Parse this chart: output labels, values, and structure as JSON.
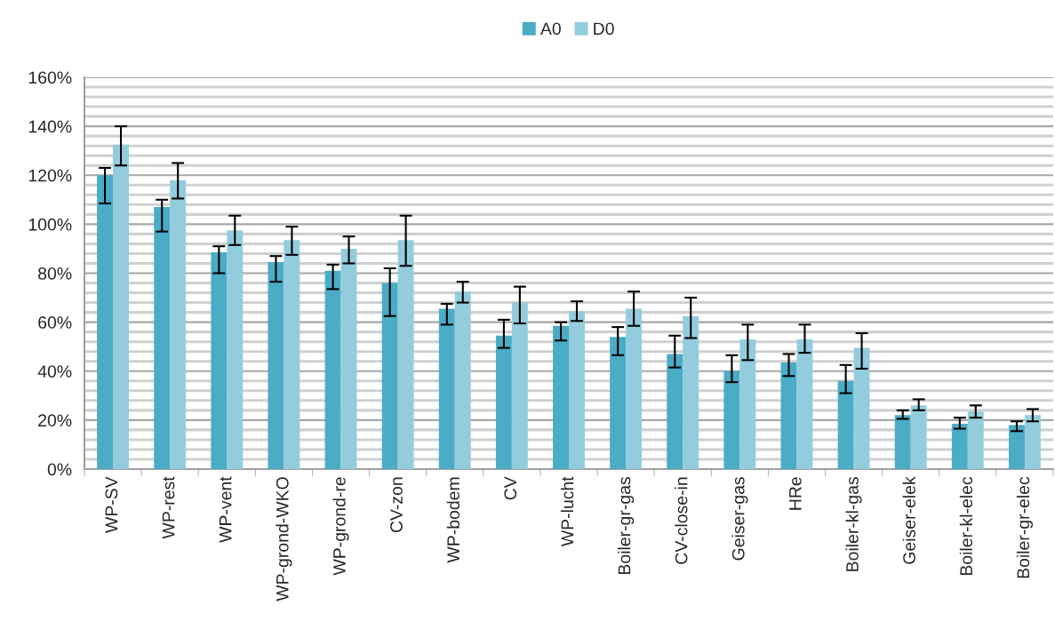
{
  "chart_data": {
    "type": "bar",
    "categories": [
      "WP-SV",
      "WP-rest",
      "WP-vent",
      "WP-grond-WKO",
      "WP-grond-re",
      "CV-zon",
      "WP-bodem",
      "CV",
      "WP-lucht",
      "Boiler-gr-gas",
      "CV-close-in",
      "Geiser-gas",
      "HRe",
      "Boiler-kl-gas",
      "Geiser-elek",
      "Boiler-kl-elec",
      "Boiler-gr-elec"
    ],
    "series": [
      {
        "name": "A0",
        "color": "#4bacc6",
        "values": [
          120,
          107,
          88.5,
          84.5,
          81,
          76,
          65.5,
          54.5,
          58.5,
          54,
          47,
          40,
          43.5,
          36,
          22,
          18.5,
          18
        ],
        "errors": [
          [
            108.5,
            123
          ],
          [
            97,
            110
          ],
          [
            80,
            91
          ],
          [
            76.5,
            87
          ],
          [
            73.5,
            83.5
          ],
          [
            62.5,
            82
          ],
          [
            59,
            67.5
          ],
          [
            49.5,
            61
          ],
          [
            52.5,
            60
          ],
          [
            46.5,
            58
          ],
          [
            41.5,
            54.5
          ],
          [
            35.5,
            46.5
          ],
          [
            38,
            47
          ],
          [
            31,
            42.5
          ],
          [
            20.5,
            24
          ],
          [
            16.5,
            21
          ],
          [
            15.5,
            19.5
          ]
        ]
      },
      {
        "name": "D0",
        "color": "#93cddd",
        "values": [
          132.5,
          118,
          97.5,
          93.5,
          90,
          93.5,
          72.5,
          68,
          64.5,
          65.5,
          62.5,
          53,
          53,
          49.5,
          26,
          23.5,
          22
        ],
        "errors": [
          [
            124,
            140
          ],
          [
            110.5,
            125
          ],
          [
            91.5,
            103.5
          ],
          [
            87.5,
            99
          ],
          [
            84,
            95
          ],
          [
            83,
            103.5
          ],
          [
            68,
            76.5
          ],
          [
            59.5,
            74.5
          ],
          [
            60.5,
            68.5
          ],
          [
            58.5,
            72.5
          ],
          [
            53.5,
            70
          ],
          [
            44.5,
            59
          ],
          [
            47.5,
            59
          ],
          [
            41,
            55.5
          ],
          [
            24,
            28.5
          ],
          [
            21,
            26
          ],
          [
            19.5,
            24.5
          ]
        ]
      }
    ],
    "ylim": [
      0,
      160
    ],
    "yticks": [
      {
        "value": 0,
        "label": "0%"
      },
      {
        "value": 4,
        "label": null
      },
      {
        "value": 8,
        "label": null
      },
      {
        "value": 12,
        "label": null
      },
      {
        "value": 16,
        "label": null
      },
      {
        "value": 20,
        "label": "20%"
      },
      {
        "value": 24,
        "label": null
      },
      {
        "value": 28,
        "label": null
      },
      {
        "value": 32,
        "label": null
      },
      {
        "value": 36,
        "label": null
      },
      {
        "value": 40,
        "label": "40%"
      },
      {
        "value": 44,
        "label": null
      },
      {
        "value": 48,
        "label": null
      },
      {
        "value": 52,
        "label": null
      },
      {
        "value": 56,
        "label": null
      },
      {
        "value": 60,
        "label": "60%"
      },
      {
        "value": 64,
        "label": null
      },
      {
        "value": 68,
        "label": null
      },
      {
        "value": 72,
        "label": null
      },
      {
        "value": 76,
        "label": null
      },
      {
        "value": 80,
        "label": "80%"
      },
      {
        "value": 84,
        "label": null
      },
      {
        "value": 88,
        "label": null
      },
      {
        "value": 92,
        "label": null
      },
      {
        "value": 96,
        "label": null
      },
      {
        "value": 100,
        "label": "100%"
      },
      {
        "value": 104,
        "label": null
      },
      {
        "value": 108,
        "label": null
      },
      {
        "value": 112,
        "label": null
      },
      {
        "value": 116,
        "label": null
      },
      {
        "value": 120,
        "label": "120%"
      },
      {
        "value": 124,
        "label": null
      },
      {
        "value": 128,
        "label": null
      },
      {
        "value": 132,
        "label": null
      },
      {
        "value": 136,
        "label": null
      },
      {
        "value": 140,
        "label": "140%"
      },
      {
        "value": 144,
        "label": null
      },
      {
        "value": 148,
        "label": null
      },
      {
        "value": 152,
        "label": null
      },
      {
        "value": 156,
        "label": null
      },
      {
        "value": 160,
        "label": "160%"
      }
    ],
    "grid": "y",
    "legend": "top"
  }
}
